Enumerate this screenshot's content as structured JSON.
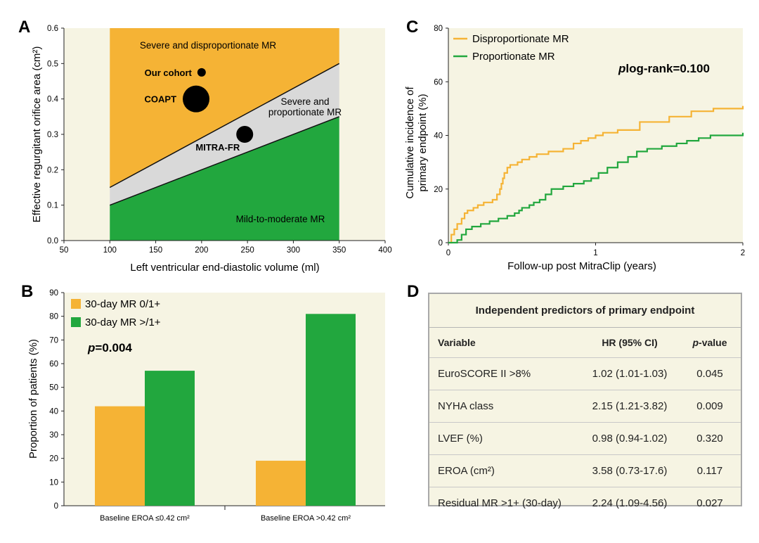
{
  "panels": {
    "a": "A",
    "b": "B",
    "c": "C",
    "d": "D"
  },
  "chart_data": [
    {
      "id": "A",
      "type": "area",
      "xlabel": "Left ventricular end-diastolic volume (ml)",
      "ylabel": "Effective regurgitant orifice area (cm²)",
      "xlim": [
        50,
        400
      ],
      "ylim": [
        0,
        0.6
      ],
      "xticks": [
        50,
        100,
        150,
        200,
        250,
        300,
        350,
        400
      ],
      "yticks": [
        "0.0",
        "0.1",
        "0.2",
        "0.3",
        "0.4",
        "0.5",
        "0.6"
      ],
      "regions": [
        {
          "name": "Severe and disproportionate MR",
          "color": "#f5b335",
          "lower_line": [
            [
              100,
              0.15
            ],
            [
              350,
              0.5
            ]
          ],
          "upper": 0.6
        },
        {
          "name": "Severe and proportionate MR",
          "color": "#d9d9d9",
          "lower_line": [
            [
              100,
              0.1
            ],
            [
              350,
              0.35
            ]
          ],
          "upper_line": [
            [
              100,
              0.15
            ],
            [
              350,
              0.5
            ]
          ]
        },
        {
          "name": "Mild-to-moderate MR",
          "color": "#22a73e",
          "upper_line": [
            [
              100,
              0.1
            ],
            [
              350,
              0.35
            ]
          ],
          "lower": 0
        }
      ],
      "region_labels": [
        "Severe and disproportionate MR",
        "Severe and",
        "proportionate MR",
        "Mild-to-moderate MR"
      ],
      "points": [
        {
          "name": "Our cohort",
          "x": 200,
          "y": 0.475,
          "size": "small"
        },
        {
          "name": "COAPT",
          "x": 194,
          "y": 0.4,
          "size": "large"
        },
        {
          "name": "MITRA-FR",
          "x": 247,
          "y": 0.3,
          "size": "medium"
        }
      ],
      "xrange_shaded": [
        100,
        350
      ]
    },
    {
      "id": "B",
      "type": "bar",
      "ylabel": "Proportion of patients (%)",
      "ylim": [
        0,
        90
      ],
      "yticks": [
        0,
        10,
        20,
        30,
        40,
        50,
        60,
        70,
        80,
        90
      ],
      "categories": [
        "Baseline EROA ≤0.42 cm²",
        "Baseline EROA >0.42 cm²"
      ],
      "series": [
        {
          "name": "30-day MR 0/1+",
          "color": "#f5b335",
          "values": [
            42,
            19
          ]
        },
        {
          "name": "30-day MR >/1+",
          "color": "#22a73e",
          "values": [
            57,
            81
          ]
        }
      ],
      "annotation_p": "p",
      "annotation_value": "=0.004",
      "legend": "top-left"
    },
    {
      "id": "C",
      "type": "line",
      "xlabel": "Follow-up post MitraClip (years)",
      "ylabel_lines": [
        "Cumulative incidence of",
        "primary endpoint (%)"
      ],
      "xlim": [
        0,
        2
      ],
      "ylim": [
        0,
        80
      ],
      "xticks": [
        0,
        1,
        2
      ],
      "yticks": [
        0,
        20,
        40,
        60,
        80
      ],
      "series": [
        {
          "name": "Disproportionate MR",
          "color": "#f5b335",
          "x": [
            0,
            0.02,
            0.04,
            0.06,
            0.09,
            0.11,
            0.13,
            0.17,
            0.2,
            0.24,
            0.3,
            0.33,
            0.35,
            0.36,
            0.37,
            0.38,
            0.4,
            0.42,
            0.47,
            0.5,
            0.55,
            0.6,
            0.68,
            0.78,
            0.85,
            0.9,
            0.95,
            1.0,
            1.05,
            1.15,
            1.3,
            1.5,
            1.65,
            1.8,
            2.0
          ],
          "y": [
            0,
            3,
            5,
            7,
            9,
            11,
            12,
            13,
            14,
            15,
            16,
            18,
            20,
            22,
            24,
            26,
            28,
            29,
            30,
            31,
            32,
            33,
            34,
            35,
            37,
            38,
            39,
            40,
            41,
            42,
            45,
            47,
            49,
            50,
            51
          ]
        },
        {
          "name": "Proportionate MR",
          "color": "#22a73e",
          "x": [
            0,
            0.06,
            0.09,
            0.12,
            0.16,
            0.22,
            0.28,
            0.34,
            0.4,
            0.45,
            0.48,
            0.5,
            0.55,
            0.58,
            0.62,
            0.66,
            0.7,
            0.78,
            0.85,
            0.92,
            0.97,
            1.02,
            1.08,
            1.15,
            1.22,
            1.28,
            1.35,
            1.45,
            1.55,
            1.62,
            1.7,
            1.78,
            2.0
          ],
          "y": [
            0,
            1,
            3,
            5,
            6,
            7,
            8,
            9,
            10,
            11,
            12,
            13,
            14,
            15,
            16,
            18,
            20,
            21,
            22,
            23,
            24,
            26,
            28,
            30,
            32,
            34,
            35,
            36,
            37,
            38,
            39,
            40,
            41
          ]
        }
      ],
      "annotation_p": "p",
      "annotation_value": "log-rank=0.100",
      "legend": "top-left"
    }
  ],
  "table": {
    "title": "Independent predictors of primary endpoint",
    "headers": {
      "variable": "Variable",
      "hr": "HR (95% CI)",
      "p_prefix": "p",
      "p_suffix": "-value"
    },
    "rows": [
      {
        "variable": "EuroSCORE II >8%",
        "hr": "1.02 (1.01-1.03)",
        "p": "0.045"
      },
      {
        "variable": "NYHA class",
        "hr": "2.15 (1.21-3.82)",
        "p": "0.009"
      },
      {
        "variable": "LVEF (%)",
        "hr": "0.98 (0.94-1.02)",
        "p": "0.320"
      },
      {
        "variable": "EROA (cm²)",
        "hr": "3.58 (0.73-17.6)",
        "p": "0.117"
      },
      {
        "variable": "Residual MR >1+ (30-day)",
        "hr": "2.24 (1.09-4.56)",
        "p": "0.027"
      }
    ]
  }
}
